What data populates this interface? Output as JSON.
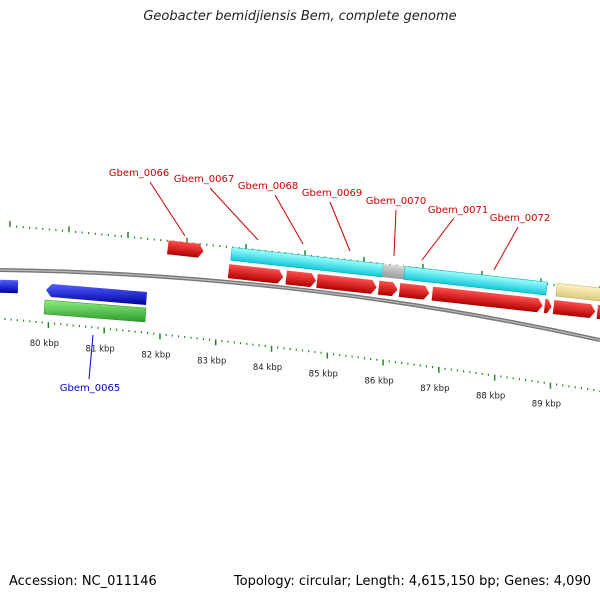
{
  "title": "Geobacter bemidjiensis Bem, complete genome",
  "footer": {
    "accession": "Accession: NC_011146",
    "summary": "Topology: circular; Length: 4,615,150 bp; Genes: 4,090"
  },
  "scale": {
    "tick_labels": [
      "80 kbp",
      "81 kbp",
      "82 kbp",
      "83 kbp",
      "84 kbp",
      "85 kbp",
      "86 kbp",
      "87 kbp",
      "88 kbp",
      "89 kbp"
    ]
  },
  "gene_labels": [
    {
      "text": "Gbem_0065",
      "color": "#0000cc"
    },
    {
      "text": "Gbem_0066",
      "color": "#cc0000"
    },
    {
      "text": "Gbem_0067",
      "color": "#cc0000"
    },
    {
      "text": "Gbem_0068",
      "color": "#cc0000"
    },
    {
      "text": "Gbem_0069",
      "color": "#cc0000"
    },
    {
      "text": "Gbem_0070",
      "color": "#cc0000"
    },
    {
      "text": "Gbem_0071",
      "color": "#cc0000"
    },
    {
      "text": "Gbem_0072",
      "color": "#cc0000"
    }
  ],
  "colors": {
    "forward_cds": "#dd0000",
    "reverse_cds": "#0000dd",
    "rrna": "#22cccc",
    "trna": "#44bb44",
    "other": "#eedd99",
    "gap": "#aaaaaa",
    "tick": "#228822",
    "backbone": "#888888"
  }
}
